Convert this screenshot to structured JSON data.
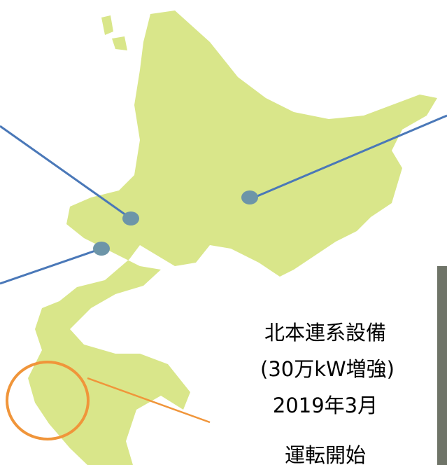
{
  "annotation": {
    "lines": [
      "北本連系設備",
      "(30万kW増強)",
      "2019年3月",
      "運転開始"
    ]
  }
}
